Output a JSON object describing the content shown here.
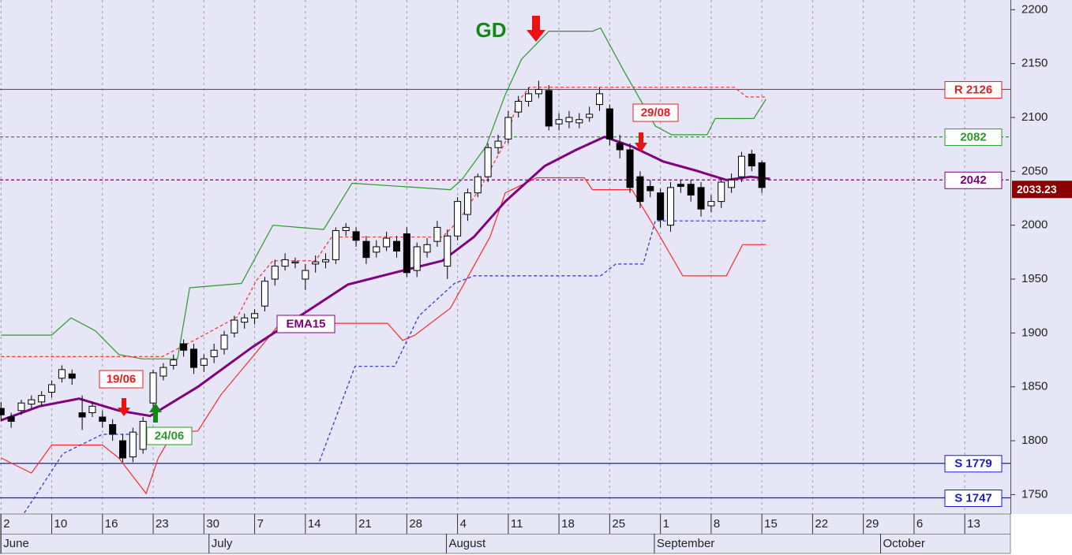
{
  "chart_data": {
    "type": "candlestick",
    "xlim": [
      -0.1,
      99.5
    ],
    "ylim": [
      1732,
      2209
    ],
    "yticks": [
      1750,
      1800,
      1850,
      1900,
      1950,
      2000,
      2050,
      2100,
      2150,
      2200
    ],
    "xticks": [
      {
        "value": 0,
        "label": "2"
      },
      {
        "value": 5,
        "label": "10"
      },
      {
        "value": 10,
        "label": "16"
      },
      {
        "value": 15,
        "label": "23"
      },
      {
        "value": 20,
        "label": "30"
      },
      {
        "value": 25,
        "label": "7"
      },
      {
        "value": 30,
        "label": "14"
      },
      {
        "value": 35,
        "label": "21"
      },
      {
        "value": 40,
        "label": "28"
      },
      {
        "value": 45,
        "label": "4"
      },
      {
        "value": 50,
        "label": "11"
      },
      {
        "value": 55,
        "label": "18"
      },
      {
        "value": 60,
        "label": "25"
      },
      {
        "value": 65,
        "label": "1"
      },
      {
        "value": 70,
        "label": "8"
      },
      {
        "value": 75,
        "label": "15"
      },
      {
        "value": 80,
        "label": "22"
      },
      {
        "value": 85,
        "label": "29"
      },
      {
        "value": 90,
        "label": "6"
      },
      {
        "value": 95,
        "label": "13"
      }
    ],
    "months": [
      {
        "value": 0,
        "label": "June"
      },
      {
        "value": 20.5,
        "label": "July"
      },
      {
        "value": 43.9,
        "label": "August"
      },
      {
        "value": 64.4,
        "label": "September"
      },
      {
        "value": 86.7,
        "label": "October"
      }
    ],
    "grid": true,
    "up_color": "#ffffff",
    "down_color": "#000000",
    "open": [
      1830,
      1822,
      1828,
      1834,
      1836,
      1845,
      1858,
      1862,
      1826,
      1826,
      1822,
      1815,
      1800,
      1785,
      1792,
      1835,
      1860,
      1870,
      1890,
      1885,
      1870,
      1878,
      1885,
      1900,
      1910,
      1914,
      1925,
      1950,
      1962,
      1965,
      1950,
      1964,
      1966,
      1968,
      1995,
      1994,
      1985,
      1975,
      1980,
      1985,
      1992,
      1958,
      1975,
      1985,
      1962,
      1990,
      2010,
      2030,
      2045,
      2072,
      2080,
      2105,
      2115,
      2122,
      2125,
      2094,
      2096,
      2095,
      2100,
      2112,
      2108,
      2076,
      2070,
      2045,
      2036,
      2030,
      2000,
      2038,
      2038,
      2035,
      2018,
      2022,
      2035,
      2045,
      2066,
      2058
    ],
    "high": [
      1836,
      1826,
      1838,
      1842,
      1846,
      1856,
      1870,
      1866,
      1842,
      1836,
      1828,
      1820,
      1806,
      1812,
      1822,
      1866,
      1872,
      1880,
      1894,
      1890,
      1880,
      1890,
      1902,
      1916,
      1918,
      1922,
      1952,
      1968,
      1974,
      1970,
      1964,
      1972,
      1974,
      1998,
      2002,
      1998,
      1990,
      1986,
      1994,
      1990,
      1998,
      1984,
      1988,
      2004,
      1996,
      2026,
      2034,
      2048,
      2076,
      2084,
      2106,
      2120,
      2128,
      2134,
      2130,
      2104,
      2106,
      2104,
      2110,
      2128,
      2112,
      2084,
      2076,
      2050,
      2042,
      2034,
      2040,
      2042,
      2042,
      2040,
      2028,
      2044,
      2048,
      2068,
      2070,
      2060
    ],
    "low": [
      1818,
      1812,
      1824,
      1830,
      1832,
      1840,
      1854,
      1852,
      1810,
      1822,
      1812,
      1800,
      1780,
      1780,
      1788,
      1830,
      1856,
      1866,
      1878,
      1862,
      1864,
      1872,
      1880,
      1896,
      1904,
      1908,
      1920,
      1944,
      1958,
      1960,
      1940,
      1956,
      1960,
      1964,
      1990,
      1980,
      1964,
      1970,
      1976,
      1970,
      1952,
      1952,
      1970,
      1980,
      1950,
      1986,
      2004,
      2026,
      2040,
      2066,
      2076,
      2100,
      2110,
      2118,
      2088,
      2088,
      2090,
      2090,
      2096,
      2106,
      2074,
      2062,
      2030,
      2016,
      2026,
      1998,
      1994,
      2030,
      2022,
      2008,
      2012,
      2016,
      2030,
      2040,
      2050,
      2030
    ],
    "close": [
      1824,
      1818,
      1835,
      1838,
      1842,
      1852,
      1866,
      1858,
      1822,
      1832,
      1818,
      1806,
      1784,
      1808,
      1818,
      1863,
      1868,
      1875,
      1884,
      1868,
      1876,
      1884,
      1898,
      1912,
      1914,
      1918,
      1948,
      1962,
      1968,
      1966,
      1958,
      1966,
      1968,
      1995,
      1998,
      1986,
      1970,
      1980,
      1988,
      1976,
      1956,
      1980,
      1982,
      1998,
      1990,
      2022,
      2030,
      2045,
      2072,
      2078,
      2100,
      2115,
      2122,
      2126,
      2092,
      2098,
      2100,
      2098,
      2103,
      2122,
      2080,
      2070,
      2035,
      2022,
      2032,
      2005,
      2035,
      2036,
      2028,
      2015,
      2022,
      2040,
      2042,
      2064,
      2055,
      2035
    ],
    "lines": [
      {
        "color": "#2a9a2a",
        "width": 1.2,
        "dash": false,
        "x": [
          0,
          5,
          6.9,
          9.3,
          11.6,
          13.9,
          17.4,
          18.6,
          23.7,
          26.8,
          31.8,
          34.6,
          44.3,
          45.4,
          47.8,
          49.7,
          51.3,
          54,
          58.3,
          59.1,
          61.4,
          64.5,
          66.1,
          69.6,
          70.4,
          74.2,
          75.4
        ],
        "values": [
          1898,
          1898,
          1914,
          1902,
          1880,
          1876,
          1876,
          1942,
          1946,
          2000,
          1996,
          2039,
          2033,
          2042,
          2073,
          2121,
          2154,
          2180,
          2180,
          2183,
          2143,
          2092,
          2084,
          2084,
          2099,
          2099,
          2117
        ]
      },
      {
        "color": "#ff2a2a",
        "width": 1.2,
        "dash": false,
        "x": [
          0,
          3,
          5,
          10,
          11.6,
          14.3,
          15.5,
          17,
          19.4,
          21.7,
          25.6,
          27.5,
          38.1,
          39.6,
          40.8,
          44.3,
          48.2,
          49.7,
          52.8,
          57.5,
          58.3,
          62.2,
          64.5,
          67.2,
          71.5,
          73.1,
          75.4
        ],
        "values": [
          1784,
          1770,
          1796,
          1796,
          1784,
          1751,
          1784,
          1808,
          1809,
          1843,
          1887,
          1909,
          1909,
          1893,
          1898,
          1923,
          1989,
          2030,
          2044,
          2044,
          2033,
          2033,
          1997,
          1953,
          1953,
          1982,
          1982
        ]
      },
      {
        "color": "#2a2ae6",
        "width": 1.2,
        "dash": true,
        "x": [
          2.3,
          6.1,
          10,
          13.5,
          24,
          31.4,
          34.9,
          38.8,
          41.2,
          44.7,
          46.6,
          59.1,
          60.6,
          63.3,
          64.5,
          75.4
        ],
        "values": [
          1733,
          1788,
          1806,
          1806,
          null,
          1781,
          1869,
          1869,
          1916,
          1946,
          1953,
          1953,
          1964,
          1964,
          2004,
          2004
        ]
      },
      {
        "color": "#ff2a2a",
        "width": 1.2,
        "dash": true,
        "x": [
          0,
          15.9,
          19.4,
          23.3,
          25.2,
          26.8,
          31,
          32.6,
          43.5,
          45.1,
          47.4,
          49.7,
          50.9,
          52.1,
          72.3,
          73.5,
          75.4
        ],
        "values": [
          1878,
          1878,
          1895,
          1915,
          1949,
          1967,
          1967,
          1989,
          1989,
          2004,
          2037,
          2077,
          2114,
          2128,
          2128,
          2119,
          2119
        ]
      },
      {
        "name": "EMA15",
        "color": "#800080",
        "width": 3,
        "dash": false,
        "x": [
          0,
          3.8,
          7.7,
          11.6,
          14.7,
          19.4,
          24.8,
          29.5,
          34.2,
          38.8,
          43.5,
          46.6,
          49.7,
          53.6,
          56.7,
          59.5,
          62.2,
          65.3,
          68.4,
          71.5,
          73.9,
          75.8
        ],
        "values": [
          1819,
          1832,
          1839,
          1828,
          1823,
          1850,
          1887,
          1916,
          1945,
          1956,
          1967,
          1989,
          2022,
          2055,
          2070,
          2082,
          2073,
          2059,
          2051,
          2042,
          2045,
          2043
        ]
      }
    ],
    "levels": [
      {
        "label": "R 2126",
        "value": 2126,
        "color": "#e02020",
        "dash": false
      },
      {
        "label": "2082",
        "value": 2082,
        "color": "#2a9a2a",
        "dash": true
      },
      {
        "label": "2042",
        "value": 2042,
        "color": "#800080",
        "dash": true
      },
      {
        "label": "S 1779",
        "value": 1779,
        "color": "#1a1ad0",
        "dash": false
      },
      {
        "label": "S 1747",
        "value": 1747,
        "color": "#1a1ad0",
        "dash": false
      }
    ],
    "last_price": 2033.23,
    "annotations": {
      "gd": "GD",
      "jun19": "19/06",
      "jun24": "24/06",
      "aug29": "29/08"
    }
  }
}
